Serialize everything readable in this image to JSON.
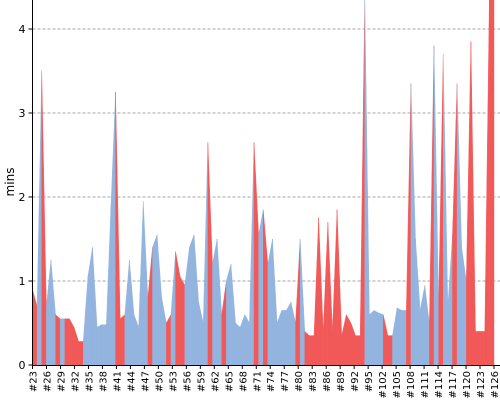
{
  "chart_data": {
    "type": "area",
    "title": "",
    "xlabel": "",
    "ylabel": "mins",
    "ylim": [
      0,
      4.4
    ],
    "y_ticks": [
      "0",
      "1",
      "2",
      "3",
      "4"
    ],
    "grid": "horizontal dashed",
    "colors": {
      "pass": "#92b4de",
      "fail": "#f15959"
    },
    "x_tick_labels": [
      "#23",
      "#26",
      "#29",
      "#32",
      "#35",
      "#38",
      "#41",
      "#44",
      "#47",
      "#50",
      "#53",
      "#56",
      "#59",
      "#62",
      "#65",
      "#68",
      "#71",
      "#74",
      "#77",
      "#80",
      "#83",
      "#86",
      "#89",
      "#92",
      "#95",
      "#102",
      "#105",
      "#108",
      "#111",
      "#114",
      "#117",
      "#120",
      "#123",
      "#126"
    ],
    "points": [
      {
        "v": 0.9,
        "s": "pass"
      },
      {
        "v": 0.7,
        "s": "fail"
      },
      {
        "v": 3.5,
        "s": "pass"
      },
      {
        "v": 0.7,
        "s": "fail"
      },
      {
        "v": 1.25,
        "s": "pass"
      },
      {
        "v": 0.6,
        "s": "pass"
      },
      {
        "v": 0.55,
        "s": "fail"
      },
      {
        "v": 0.55,
        "s": "pass"
      },
      {
        "v": 0.55,
        "s": "fail"
      },
      {
        "v": 0.45,
        "s": "fail"
      },
      {
        "v": 0.28,
        "s": "fail"
      },
      {
        "v": 0.28,
        "s": "fail"
      },
      {
        "v": 1.05,
        "s": "pass"
      },
      {
        "v": 1.4,
        "s": "pass"
      },
      {
        "v": 0.45,
        "s": "pass"
      },
      {
        "v": 0.48,
        "s": "pass"
      },
      {
        "v": 0.48,
        "s": "pass"
      },
      {
        "v": 1.9,
        "s": "pass"
      },
      {
        "v": 3.25,
        "s": "pass"
      },
      {
        "v": 0.55,
        "s": "fail"
      },
      {
        "v": 0.6,
        "s": "fail"
      },
      {
        "v": 1.25,
        "s": "pass"
      },
      {
        "v": 0.6,
        "s": "pass"
      },
      {
        "v": 0.45,
        "s": "pass"
      },
      {
        "v": 1.95,
        "s": "pass"
      },
      {
        "v": 0.8,
        "s": "pass"
      },
      {
        "v": 1.4,
        "s": "fail"
      },
      {
        "v": 1.55,
        "s": "pass"
      },
      {
        "v": 0.8,
        "s": "pass"
      },
      {
        "v": 0.5,
        "s": "pass"
      },
      {
        "v": 0.6,
        "s": "fail"
      },
      {
        "v": 1.35,
        "s": "pass"
      },
      {
        "v": 1.05,
        "s": "fail"
      },
      {
        "v": 0.95,
        "s": "fail"
      },
      {
        "v": 1.4,
        "s": "pass"
      },
      {
        "v": 1.55,
        "s": "pass"
      },
      {
        "v": 0.75,
        "s": "pass"
      },
      {
        "v": 0.5,
        "s": "pass"
      },
      {
        "v": 2.65,
        "s": "pass"
      },
      {
        "v": 1.2,
        "s": "fail"
      },
      {
        "v": 1.5,
        "s": "pass"
      },
      {
        "v": 0.6,
        "s": "pass"
      },
      {
        "v": 1.0,
        "s": "fail"
      },
      {
        "v": 1.2,
        "s": "pass"
      },
      {
        "v": 0.5,
        "s": "pass"
      },
      {
        "v": 0.45,
        "s": "pass"
      },
      {
        "v": 0.6,
        "s": "pass"
      },
      {
        "v": 0.5,
        "s": "pass"
      },
      {
        "v": 2.65,
        "s": "pass"
      },
      {
        "v": 1.55,
        "s": "fail"
      },
      {
        "v": 1.85,
        "s": "pass"
      },
      {
        "v": 1.2,
        "s": "fail"
      },
      {
        "v": 1.5,
        "s": "pass"
      },
      {
        "v": 0.5,
        "s": "pass"
      },
      {
        "v": 0.65,
        "s": "pass"
      },
      {
        "v": 0.65,
        "s": "pass"
      },
      {
        "v": 0.75,
        "s": "pass"
      },
      {
        "v": 0.5,
        "s": "pass"
      },
      {
        "v": 1.5,
        "s": "fail"
      },
      {
        "v": 0.4,
        "s": "pass"
      },
      {
        "v": 0.35,
        "s": "fail"
      },
      {
        "v": 0.35,
        "s": "fail"
      },
      {
        "v": 1.75,
        "s": "fail"
      },
      {
        "v": 0.4,
        "s": "fail"
      },
      {
        "v": 1.7,
        "s": "fail"
      },
      {
        "v": 0.4,
        "s": "fail"
      },
      {
        "v": 1.85,
        "s": "fail"
      },
      {
        "v": 0.35,
        "s": "fail"
      },
      {
        "v": 0.6,
        "s": "fail"
      },
      {
        "v": 0.5,
        "s": "fail"
      },
      {
        "v": 0.35,
        "s": "fail"
      },
      {
        "v": 0.35,
        "s": "fail"
      },
      {
        "v": 4.4,
        "s": "fail"
      },
      {
        "v": 0.6,
        "s": "pass"
      },
      {
        "v": 0.65,
        "s": "pass"
      },
      {
        "v": 0.62,
        "s": "pass"
      },
      {
        "v": 0.6,
        "s": "pass"
      },
      {
        "v": 0.35,
        "s": "fail"
      },
      {
        "v": 0.35,
        "s": "fail"
      },
      {
        "v": 0.68,
        "s": "pass"
      },
      {
        "v": 0.65,
        "s": "pass"
      },
      {
        "v": 0.65,
        "s": "pass"
      },
      {
        "v": 3.35,
        "s": "fail"
      },
      {
        "v": 1.5,
        "s": "pass"
      },
      {
        "v": 0.65,
        "s": "pass"
      },
      {
        "v": 0.95,
        "s": "pass"
      },
      {
        "v": 0.5,
        "s": "pass"
      },
      {
        "v": 3.8,
        "s": "fail"
      },
      {
        "v": 0.75,
        "s": "pass"
      },
      {
        "v": 3.7,
        "s": "fail"
      },
      {
        "v": 0.7,
        "s": "pass"
      },
      {
        "v": 1.55,
        "s": "pass"
      },
      {
        "v": 3.35,
        "s": "fail"
      },
      {
        "v": 1.4,
        "s": "pass"
      },
      {
        "v": 1.0,
        "s": "pass"
      },
      {
        "v": 3.85,
        "s": "fail"
      },
      {
        "v": 0.4,
        "s": "fail"
      },
      {
        "v": 0.4,
        "s": "fail"
      },
      {
        "v": 0.4,
        "s": "fail"
      },
      {
        "v": 4.4,
        "s": "fail"
      },
      {
        "v": 4.4,
        "s": "fail"
      }
    ]
  }
}
